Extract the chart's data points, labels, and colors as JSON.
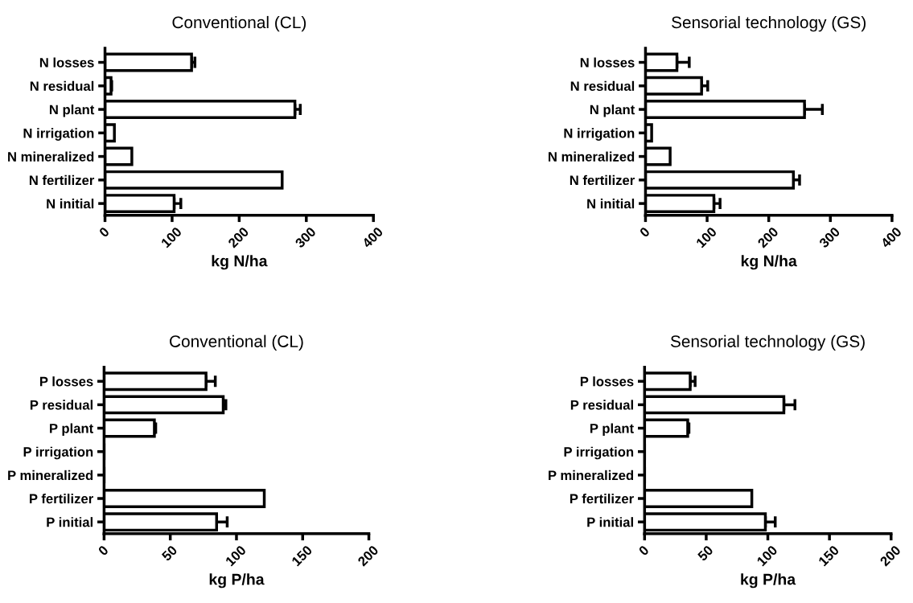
{
  "chart_data": [
    {
      "type": "bar",
      "orientation": "horizontal",
      "title": "Conventional (CL)",
      "xlabel": "kg N/ha",
      "categories": [
        "N losses",
        "N residual",
        "N plant",
        "N irrigation",
        "N mineralized",
        "N fertilizer",
        "N initial"
      ],
      "values": [
        129,
        9,
        283,
        14,
        40,
        264,
        103
      ],
      "errors": [
        [
          129,
          134
        ],
        [
          9,
          10
        ],
        [
          283,
          291
        ],
        null,
        null,
        null,
        [
          103,
          113
        ]
      ],
      "color": "#ffffff",
      "xlim": [
        0,
        400
      ],
      "xticks": [
        0,
        100,
        200,
        300,
        400
      ],
      "grid": false,
      "legend": false
    },
    {
      "type": "bar",
      "orientation": "horizontal",
      "title": "Sensorial technology (GS)",
      "xlabel": "kg N/ha",
      "categories": [
        "N losses",
        "N residual",
        "N plant",
        "N irrigation",
        "N mineralized",
        "N fertilizer",
        "N initial"
      ],
      "values": [
        51,
        91,
        258,
        10,
        40,
        240,
        111
      ],
      "errors": [
        [
          51,
          71
        ],
        [
          91,
          101
        ],
        [
          258,
          287
        ],
        null,
        null,
        [
          240,
          250
        ],
        [
          111,
          121
        ]
      ],
      "color": "#ffffff",
      "xlim": [
        0,
        400
      ],
      "xticks": [
        0,
        100,
        200,
        300,
        400
      ],
      "grid": false,
      "legend": false
    },
    {
      "type": "bar",
      "orientation": "horizontal",
      "title": "Conventional (CL)",
      "xlabel": "kg P/ha",
      "categories": [
        "P losses",
        "P residual",
        "P plant",
        "P irrigation",
        "P mineralized",
        "P fertilizer",
        "P initial"
      ],
      "values": [
        77,
        90,
        38,
        0,
        0,
        121,
        85
      ],
      "errors": [
        [
          77,
          84
        ],
        [
          90,
          92
        ],
        [
          38,
          39
        ],
        null,
        null,
        null,
        [
          85,
          93
        ]
      ],
      "color": "#ffffff",
      "xlim": [
        0,
        200
      ],
      "xticks": [
        0,
        50,
        100,
        150,
        200
      ],
      "grid": false,
      "legend": false
    },
    {
      "type": "bar",
      "orientation": "horizontal",
      "title": "Sensorial technology (GS)",
      "xlabel": "kg P/ha",
      "categories": [
        "P losses",
        "P residual",
        "P plant",
        "P irrigation",
        "P mineralized",
        "P fertilizer",
        "P initial"
      ],
      "values": [
        37,
        113,
        35,
        0,
        0,
        87,
        98
      ],
      "errors": [
        [
          37,
          41
        ],
        [
          113,
          122
        ],
        [
          35,
          36
        ],
        null,
        null,
        null,
        [
          98,
          106
        ]
      ],
      "color": "#ffffff",
      "xlim": [
        0,
        200
      ],
      "xticks": [
        0,
        50,
        100,
        150,
        200
      ],
      "grid": false,
      "legend": false
    }
  ]
}
